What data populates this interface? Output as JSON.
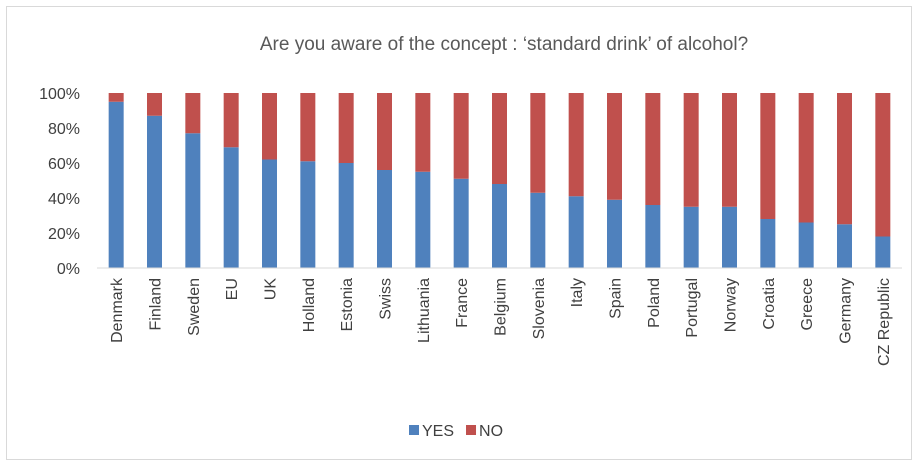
{
  "chart_data": {
    "type": "bar",
    "stacked": true,
    "title": "Are you aware of the concept : ‘standard drink’ of alcohol?",
    "categories": [
      "Denmark",
      "Finland",
      "Sweden",
      "EU",
      "UK",
      "Holland",
      "Estonia",
      "Swiss",
      "Lithuania",
      "France",
      "Belgium",
      "Slovenia",
      "Italy",
      "Spain",
      "Poland",
      "Portugal",
      "Norway",
      "Croatia",
      "Greece",
      "Germany",
      "CZ Republic"
    ],
    "series": [
      {
        "name": "YES",
        "color": "#4f81bd",
        "values": [
          95,
          87,
          77,
          69,
          62,
          61,
          60,
          56,
          55,
          51,
          48,
          43,
          41,
          39,
          36,
          35,
          35,
          28,
          26,
          25,
          18
        ]
      },
      {
        "name": "NO",
        "color": "#c0504d",
        "values": [
          5,
          13,
          23,
          31,
          38,
          39,
          40,
          44,
          45,
          49,
          52,
          57,
          59,
          61,
          64,
          65,
          65,
          72,
          74,
          75,
          82
        ]
      }
    ],
    "yticks": [
      "0%",
      "20%",
      "40%",
      "60%",
      "80%",
      "100%"
    ],
    "ylim": [
      0,
      100
    ],
    "grid": false,
    "legend": "bottom"
  }
}
